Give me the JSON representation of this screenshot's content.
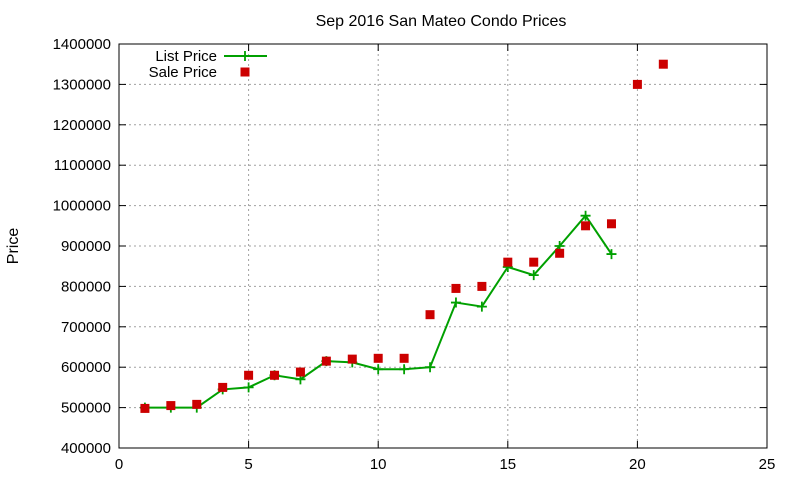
{
  "chart_data": {
    "type": "line",
    "title": "Sep 2016 San Mateo Condo Prices",
    "xlabel": "",
    "ylabel": "Price",
    "xlim": [
      0,
      25
    ],
    "ylim": [
      400000,
      1400000
    ],
    "x_ticks": [
      "0",
      "5",
      "10",
      "15",
      "20",
      "25"
    ],
    "y_ticks": [
      "400000",
      "500000",
      "600000",
      "700000",
      "800000",
      "900000",
      "1000000",
      "1100000",
      "1200000",
      "1300000",
      "1400000"
    ],
    "grid": true,
    "legend_position": "top-left",
    "series": [
      {
        "name": "List Price",
        "style": "line-plus",
        "color": "#00a000",
        "x": [
          1,
          2,
          3,
          4,
          5,
          6,
          7,
          8,
          9,
          10,
          11,
          12,
          13,
          14,
          15,
          16,
          17,
          18,
          19
        ],
        "values": [
          500000,
          500000,
          500000,
          545000,
          550000,
          580000,
          570000,
          615000,
          612000,
          595000,
          595000,
          600000,
          760000,
          750000,
          848000,
          828000,
          900000,
          975000,
          880000
        ]
      },
      {
        "name": "Sale Price",
        "style": "square",
        "color": "#cc0000",
        "x": [
          1,
          2,
          3,
          4,
          5,
          6,
          7,
          8,
          9,
          10,
          11,
          12,
          13,
          14,
          15,
          16,
          17,
          18,
          19,
          20,
          21
        ],
        "values": [
          498000,
          505000,
          508000,
          550000,
          580000,
          580000,
          588000,
          615000,
          620000,
          622000,
          622000,
          730000,
          795000,
          800000,
          860000,
          860000,
          882000,
          950000,
          955000,
          1300000,
          1350000
        ]
      }
    ]
  }
}
